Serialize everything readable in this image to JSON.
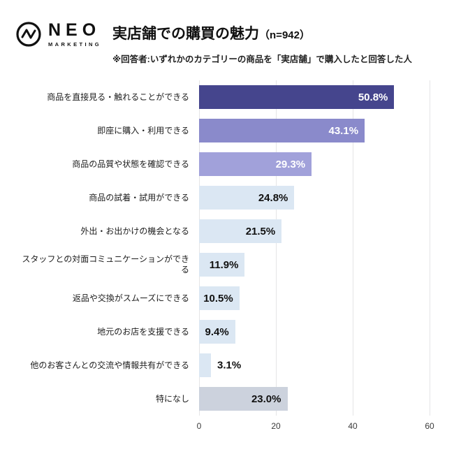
{
  "header": {
    "logo_name": "NEO",
    "logo_sub": "MARKETING",
    "title": "実店舗での購買の魅力",
    "sample_size": "（n=942）",
    "subtitle": "※回答者:いずれかのカテゴリーの商品を「実店舗」で購入したと回答した人"
  },
  "chart_data": {
    "type": "bar",
    "orientation": "horizontal",
    "title": "実店舗での購買の魅力（n=942）",
    "categories": [
      "商品を直接見る・触れることができる",
      "即座に購入・利用できる",
      "商品の品質や状態を確認できる",
      "商品の試着・試用ができる",
      "外出・お出かけの機会となる",
      "スタッフとの対面コミュニケーションができる",
      "返品や交換がスムーズにできる",
      "地元のお店を支援できる",
      "他のお客さんとの交流や情報共有ができる",
      "特になし"
    ],
    "values": [
      50.8,
      43.1,
      29.3,
      24.8,
      21.5,
      11.9,
      10.5,
      9.4,
      3.1,
      23.0
    ],
    "value_labels": [
      "50.8%",
      "43.1%",
      "29.3%",
      "24.8%",
      "21.5%",
      "11.9%",
      "10.5%",
      "9.4%",
      "3.1%",
      "23.0%"
    ],
    "bar_colors": [
      "#45458d",
      "#8a8acb",
      "#a1a1da",
      "#dbe7f3",
      "#dbe7f3",
      "#dbe7f3",
      "#dbe7f3",
      "#dbe7f3",
      "#dbe7f3",
      "#ccd2dd"
    ],
    "value_label_colors": [
      "#ffffff",
      "#ffffff",
      "#ffffff",
      "#111111",
      "#111111",
      "#111111",
      "#111111",
      "#111111",
      "#111111",
      "#111111"
    ],
    "xlabel": "",
    "ylabel": "",
    "xlim": [
      0,
      60
    ],
    "xticks": [
      "0",
      "20",
      "40",
      "60"
    ],
    "xtick_values": [
      0,
      20,
      40,
      60
    ],
    "grid": true,
    "legend": false
  }
}
